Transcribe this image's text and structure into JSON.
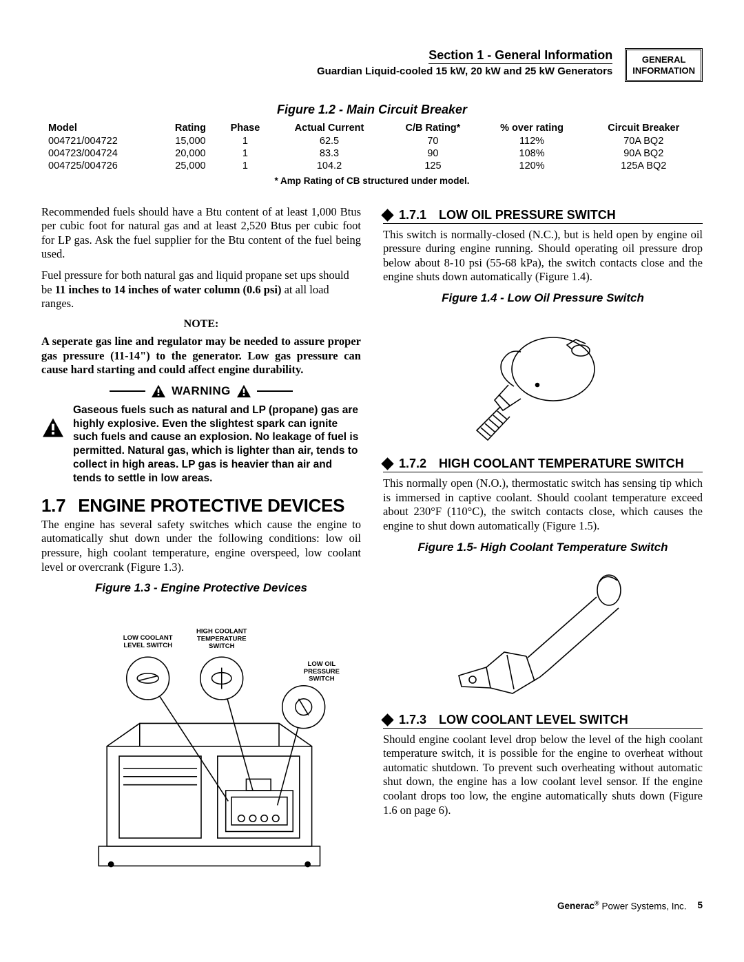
{
  "header": {
    "section_title": "Section 1 - General Information",
    "subtitle": "Guardian Liquid-cooled 15 kW, 20 kW and 25 kW Generators",
    "badge_line1": "GENERAL",
    "badge_line2": "INFORMATION"
  },
  "table": {
    "caption": "Figure 1.2 - Main Circuit Breaker",
    "columns": [
      "Model",
      "Rating",
      "Phase",
      "Actual Current",
      "C/B Rating*",
      "% over rating",
      "Circuit Breaker"
    ],
    "rows": [
      [
        "004721/004722",
        "15,000",
        "1",
        "62.5",
        "70",
        "112%",
        "70A BQ2"
      ],
      [
        "004723/004724",
        "20,000",
        "1",
        "83.3",
        "90",
        "108%",
        "90A BQ2"
      ],
      [
        "004725/004726",
        "25,000",
        "1",
        "104.2",
        "125",
        "120%",
        "125A BQ2"
      ]
    ],
    "footnote": "* Amp Rating of CB structured under model."
  },
  "left": {
    "p1": "Recommended fuels should have a Btu content of at least 1,000 Btus per cubic foot for natural gas and at least 2,520 Btus per cubic foot for LP gas. Ask the fuel supplier for the Btu content of the fuel being used.",
    "p2a": "Fuel pressure for both natural gas and liquid propane set ups should be ",
    "p2b": "11 inches to 14 inches of water column (0.6 psi)",
    "p2c": " at all load ranges.",
    "note_label": "NOTE:",
    "note_body": "A seperate gas line and regulator may be needed to assure proper gas pressure (11-14\") to the generator. Low gas pressure can cause hard starting and could affect engine durability.",
    "warning_label": "WARNING",
    "warning_text": "Gaseous fuels such as natural and LP (propane) gas are highly explosive. Even the slightest spark can ignite such fuels and cause an explosion. No leakage of fuel is permitted. Natural gas, which is lighter than air, tends to collect in high areas. LP gas is heavier than air and tends to settle in low areas.",
    "sec_num": "1.7",
    "sec_title": "ENGINE PROTECTIVE DEVICES",
    "sec_body": "The engine has several safety switches which cause the engine to automatically shut down under the following conditions: low oil pressure, high coolant temperature, engine overspeed, low coolant level or overcrank (Figure 1.3).",
    "fig13": "Figure 1.3 - Engine Protective Devices",
    "fig13_labels": {
      "l1": "LOW COOLANT\nLEVEL SWITCH",
      "l2": "HIGH COOLANT\nTEMPERATURE\nSWITCH",
      "l3": "LOW OIL\nPRESSURE\nSWITCH"
    }
  },
  "right": {
    "s171_num": "1.7.1",
    "s171_title": "LOW OIL PRESSURE SWITCH",
    "s171_body": "This switch is normally-closed (N.C.), but is held open by engine oil pressure during engine running. Should operating oil pressure drop below about 8-10 psi (55-68 kPa), the switch contacts close and the engine shuts down automatically (Figure 1.4).",
    "fig14": "Figure 1.4 - Low Oil Pressure Switch",
    "s172_num": "1.7.2",
    "s172_title": "HIGH COOLANT TEMPERATURE SWITCH",
    "s172_body": "This normally open (N.O.), thermostatic switch has sensing tip which is immersed in captive coolant. Should coolant temperature exceed about 230°F (110°C), the switch contacts close, which causes the engine to shut down automatically (Figure 1.5).",
    "fig15": "Figure 1.5- High Coolant Temperature Switch",
    "s173_num": "1.7.3",
    "s173_title": "LOW COOLANT LEVEL SWITCH",
    "s173_body": "Should engine coolant level drop below the level of the high coolant temperature switch, it is possible for the engine to overheat without automatic shutdown. To prevent such overheating without automatic shut down, the engine has a low coolant level sensor.  If the engine coolant drops too low, the engine automatically shuts down (Figure 1.6 on page 6)."
  },
  "footer": {
    "brand": "Generac",
    "brand_rest": " Power Systems, Inc.",
    "page": "5"
  },
  "style": {
    "stroke": "#000000",
    "fig14_w": 240,
    "fig14_h": 200,
    "fig15_w": 285,
    "fig15_h": 210,
    "fig13_w": 390,
    "fig13_h": 340
  }
}
